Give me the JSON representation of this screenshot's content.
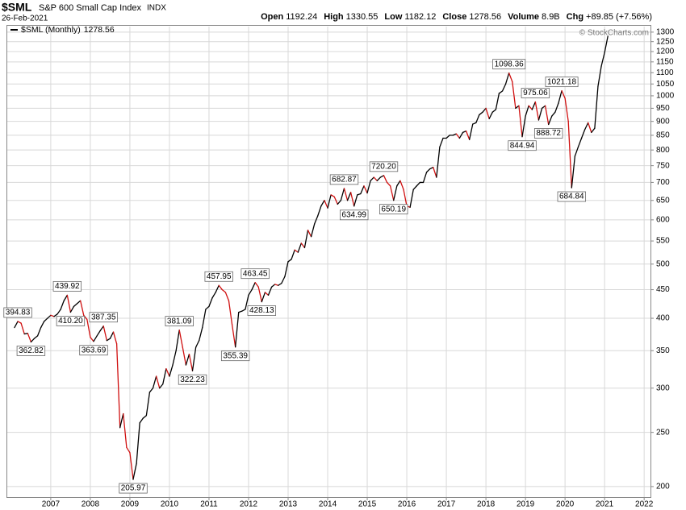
{
  "chart_data": {
    "type": "line",
    "header": {
      "symbol": "$SML",
      "name": "S&P 600 Small Cap Index",
      "exchange": "INDX",
      "date": "26-Feb-2021",
      "quote": [
        {
          "label": "Open",
          "value": "1192.24"
        },
        {
          "label": "High",
          "value": "1330.55"
        },
        {
          "label": "Low",
          "value": "1182.12"
        },
        {
          "label": "Close",
          "value": "1278.56"
        },
        {
          "label": "Volume",
          "value": "8.9B"
        },
        {
          "label": "Chg",
          "value": "+89.85 (+7.56%)"
        }
      ],
      "copyright": "© StockCharts.com"
    },
    "log_scale": true,
    "grid": true,
    "legend": "top-left",
    "up_color": "#000000",
    "down_color": "#d01010",
    "xlim": [
      2005.88,
      2022.16
    ],
    "xticks": [
      2007,
      2008,
      2009,
      2010,
      2011,
      2012,
      2013,
      2014,
      2015,
      2016,
      2017,
      2018,
      2019,
      2020,
      2021,
      2022
    ],
    "ylim": [
      191.5,
      1330
    ],
    "yticks": [
      200,
      250,
      300,
      350,
      400,
      450,
      500,
      550,
      600,
      650,
      700,
      750,
      800,
      850,
      900,
      950,
      1000,
      1050,
      1100,
      1150,
      1200,
      1250,
      1300
    ],
    "x": [
      2006.083,
      2006.167,
      2006.25,
      2006.333,
      2006.417,
      2006.5,
      2006.583,
      2006.667,
      2006.75,
      2006.833,
      2006.917,
      2007,
      2007.083,
      2007.167,
      2007.25,
      2007.333,
      2007.417,
      2007.5,
      2007.583,
      2007.667,
      2007.75,
      2007.833,
      2007.917,
      2008,
      2008.083,
      2008.167,
      2008.25,
      2008.333,
      2008.417,
      2008.5,
      2008.583,
      2008.667,
      2008.75,
      2008.833,
      2008.917,
      2009,
      2009.083,
      2009.167,
      2009.25,
      2009.333,
      2009.417,
      2009.5,
      2009.583,
      2009.667,
      2009.75,
      2009.833,
      2009.917,
      2010,
      2010.083,
      2010.167,
      2010.25,
      2010.333,
      2010.417,
      2010.5,
      2010.583,
      2010.667,
      2010.75,
      2010.833,
      2010.917,
      2011,
      2011.083,
      2011.167,
      2011.25,
      2011.333,
      2011.417,
      2011.5,
      2011.583,
      2011.667,
      2011.75,
      2011.833,
      2011.917,
      2012,
      2012.083,
      2012.167,
      2012.25,
      2012.333,
      2012.417,
      2012.5,
      2012.583,
      2012.667,
      2012.75,
      2012.833,
      2012.917,
      2013,
      2013.083,
      2013.167,
      2013.25,
      2013.333,
      2013.417,
      2013.5,
      2013.583,
      2013.667,
      2013.75,
      2013.833,
      2013.917,
      2014,
      2014.083,
      2014.167,
      2014.25,
      2014.333,
      2014.417,
      2014.5,
      2014.583,
      2014.667,
      2014.75,
      2014.833,
      2014.917,
      2015,
      2015.083,
      2015.167,
      2015.25,
      2015.333,
      2015.417,
      2015.5,
      2015.583,
      2015.667,
      2015.75,
      2015.833,
      2015.917,
      2016,
      2016.083,
      2016.167,
      2016.25,
      2016.333,
      2016.417,
      2016.5,
      2016.583,
      2016.667,
      2016.75,
      2016.833,
      2016.917,
      2017,
      2017.083,
      2017.167,
      2017.25,
      2017.333,
      2017.417,
      2017.5,
      2017.583,
      2017.667,
      2017.75,
      2017.833,
      2017.917,
      2018,
      2018.083,
      2018.167,
      2018.25,
      2018.333,
      2018.417,
      2018.5,
      2018.583,
      2018.667,
      2018.75,
      2018.833,
      2018.917,
      2019,
      2019.083,
      2019.167,
      2019.25,
      2019.333,
      2019.417,
      2019.5,
      2019.583,
      2019.667,
      2019.75,
      2019.833,
      2019.917,
      2020,
      2020.083,
      2020.167,
      2020.25,
      2020.333,
      2020.417,
      2020.5,
      2020.583,
      2020.667,
      2020.75,
      2020.833,
      2020.917,
      2021,
      2021.083
    ],
    "series": [
      {
        "name": "$SML (Monthly)",
        "color": "#000000",
        "values": [
          385,
          394.83,
          392,
          375,
          376,
          362.82,
          368,
          372,
          385,
          395,
          400,
          405,
          403,
          407,
          415,
          430,
          439.92,
          410.2,
          420,
          425,
          430,
          405,
          398,
          370,
          363.69,
          372,
          380,
          387.35,
          365,
          368,
          378,
          360,
          255,
          270,
          235,
          230,
          205.97,
          220,
          260,
          265,
          268,
          295,
          300,
          315,
          300,
          305,
          325,
          315,
          330,
          350,
          381.09,
          355,
          330,
          345,
          322.23,
          355,
          365,
          385,
          415,
          420,
          435,
          445,
          457.95,
          450,
          445,
          430,
          390,
          355.39,
          410,
          412,
          415,
          440,
          450,
          463.45,
          455,
          428.13,
          445,
          440,
          455,
          460,
          458,
          462,
          475,
          505,
          510,
          530,
          525,
          545,
          535,
          575,
          560,
          590,
          610,
          635,
          650,
          630,
          665,
          660,
          640,
          650,
          682.87,
          650,
          672,
          634.99,
          665,
          668,
          690,
          670,
          705,
          715,
          705,
          715,
          720.2,
          700,
          690,
          650.19,
          690,
          705,
          680,
          635,
          632,
          680,
          690,
          700,
          700,
          730,
          740,
          745,
          715,
          810,
          840,
          840,
          850,
          850,
          855,
          840,
          860,
          865,
          835,
          890,
          895,
          925,
          935,
          950,
          910,
          935,
          945,
          1010,
          1020,
          1050,
          1098.36,
          1060,
          950,
          960,
          844.94,
          920,
          960,
          945,
          975.06,
          905,
          950,
          960,
          888.72,
          920,
          935,
          970,
          1021.18,
          990,
          900,
          684.84,
          780,
          810,
          840,
          870,
          895,
          860,
          875,
          1040,
          1130,
          1195,
          1278.56
        ],
        "value_labels": [
          null,
          "394.83",
          null,
          null,
          null,
          "362.82",
          null,
          null,
          null,
          null,
          null,
          null,
          null,
          null,
          null,
          null,
          "439.92",
          "410.20",
          null,
          null,
          null,
          null,
          null,
          null,
          "363.69",
          null,
          null,
          "387.35",
          null,
          null,
          null,
          null,
          null,
          null,
          null,
          null,
          "205.97",
          null,
          null,
          null,
          null,
          null,
          null,
          null,
          null,
          null,
          null,
          null,
          null,
          null,
          "381.09",
          null,
          null,
          null,
          "322.23",
          null,
          null,
          null,
          null,
          null,
          null,
          null,
          "457.95",
          null,
          null,
          null,
          null,
          "355.39",
          null,
          null,
          null,
          null,
          null,
          "463.45",
          null,
          "428.13",
          null,
          null,
          null,
          null,
          null,
          null,
          null,
          null,
          null,
          null,
          null,
          null,
          null,
          null,
          null,
          null,
          null,
          null,
          null,
          null,
          null,
          null,
          null,
          null,
          "682.87",
          null,
          null,
          "634.99",
          null,
          null,
          null,
          null,
          null,
          null,
          null,
          null,
          "720.20",
          null,
          null,
          "650.19",
          null,
          null,
          null,
          null,
          null,
          null,
          null,
          null,
          null,
          null,
          null,
          null,
          null,
          null,
          null,
          null,
          null,
          null,
          null,
          null,
          null,
          null,
          null,
          null,
          null,
          null,
          null,
          null,
          null,
          null,
          null,
          null,
          null,
          null,
          "1098.36",
          null,
          null,
          null,
          "844.94",
          null,
          null,
          null,
          "975.06",
          null,
          null,
          null,
          "888.72",
          null,
          null,
          null,
          "1021.18",
          null,
          null,
          "684.84",
          null,
          null,
          null,
          null,
          null,
          null,
          null,
          null,
          null,
          null,
          null
        ]
      }
    ]
  }
}
